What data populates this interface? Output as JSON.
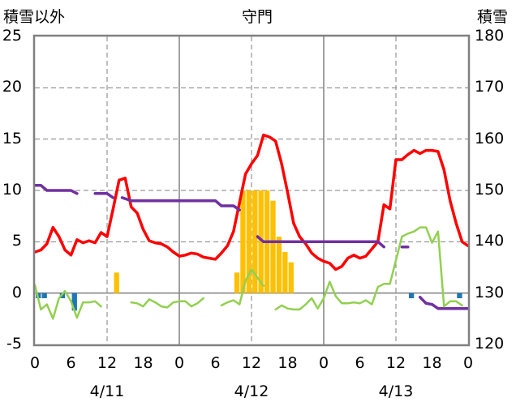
{
  "chart_data": {
    "type": "combo",
    "title": "守門",
    "left_axis_label": "積雪以外",
    "right_axis_label": "積雪",
    "left_ylim": [
      -5,
      25
    ],
    "right_ylim": [
      120,
      180
    ],
    "left_ticks": [
      "25",
      "20",
      "15",
      "10",
      "5",
      "0",
      "-5"
    ],
    "right_ticks": [
      "180",
      "170",
      "160",
      "150",
      "140",
      "130",
      "120"
    ],
    "x_unit": "hours since 4/11 00:00",
    "xlim": [
      0,
      72
    ],
    "x_tick_labels": [
      "0",
      "6",
      "12",
      "18",
      "0",
      "6",
      "12",
      "18",
      "0",
      "6",
      "12",
      "18",
      "0"
    ],
    "date_labels": [
      "4/11",
      "4/12",
      "4/13"
    ],
    "grid": true,
    "series": [
      {
        "axis": "left",
        "kind": "line",
        "color": "#ff0000",
        "points": [
          [
            0,
            4
          ],
          [
            1,
            4.2
          ],
          [
            2,
            4.8
          ],
          [
            3,
            6.4
          ],
          [
            4,
            5.5
          ],
          [
            5,
            4.2
          ],
          [
            6,
            3.7
          ],
          [
            7,
            5.2
          ],
          [
            8,
            4.9
          ],
          [
            9,
            5.1
          ],
          [
            10,
            4.9
          ],
          [
            11,
            5.9
          ],
          [
            12,
            5.5
          ],
          [
            13,
            8.2
          ],
          [
            14,
            11
          ],
          [
            15,
            11.2
          ],
          [
            16,
            8.4
          ],
          [
            17,
            7.8
          ],
          [
            18,
            6.2
          ],
          [
            19,
            5.1
          ],
          [
            20,
            4.9
          ],
          [
            21,
            4.8
          ],
          [
            22,
            4.5
          ],
          [
            23,
            4
          ],
          [
            24,
            3.6
          ],
          [
            25,
            3.7
          ],
          [
            26,
            3.9
          ],
          [
            27,
            3.8
          ],
          [
            28,
            3.5
          ],
          [
            29,
            3.4
          ],
          [
            30,
            3.3
          ],
          [
            31,
            3.9
          ],
          [
            32,
            4.6
          ],
          [
            33,
            6
          ],
          [
            34,
            8.8
          ],
          [
            35,
            11.6
          ],
          [
            36,
            12.6
          ],
          [
            37,
            13.4
          ],
          [
            38,
            15.4
          ],
          [
            39,
            15.2
          ],
          [
            40,
            14.8
          ],
          [
            41,
            12.6
          ],
          [
            42,
            9.8
          ],
          [
            43,
            6.8
          ],
          [
            44,
            5.5
          ],
          [
            45,
            4.8
          ],
          [
            46,
            3.9
          ],
          [
            47,
            3.4
          ],
          [
            48,
            3.1
          ],
          [
            49,
            2.9
          ],
          [
            50,
            2.3
          ],
          [
            51,
            2.6
          ],
          [
            52,
            3.4
          ],
          [
            53,
            3.7
          ],
          [
            54,
            3.4
          ],
          [
            55,
            3.6
          ],
          [
            56,
            4.3
          ],
          [
            57,
            5
          ],
          [
            58,
            8.6
          ],
          [
            59,
            8.2
          ],
          [
            60,
            13
          ],
          [
            61,
            13
          ],
          [
            62,
            13.5
          ],
          [
            63,
            13.9
          ],
          [
            64,
            13.6
          ],
          [
            65,
            13.9
          ],
          [
            66,
            13.9
          ],
          [
            67,
            13.8
          ],
          [
            68,
            12
          ],
          [
            69,
            9
          ],
          [
            70,
            6.8
          ],
          [
            71,
            5
          ],
          [
            72,
            4.6
          ]
        ]
      },
      {
        "axis": "right",
        "kind": "line",
        "color": "#7030a0",
        "segments": [
          [
            [
              0,
              151
            ],
            [
              1,
              151
            ],
            [
              2,
              150
            ],
            [
              3,
              150
            ],
            [
              4,
              150
            ],
            [
              5,
              150
            ],
            [
              6,
              150
            ],
            [
              7,
              149.4
            ]
          ],
          [
            [
              10,
              149.4
            ],
            [
              11,
              149.4
            ],
            [
              12,
              149.4
            ],
            [
              13,
              148.6
            ]
          ],
          [
            [
              14.5,
              148.6
            ],
            [
              16,
              148
            ],
            [
              17,
              148
            ],
            [
              18,
              148
            ],
            [
              19,
              148
            ],
            [
              20,
              148
            ],
            [
              21,
              148
            ],
            [
              22,
              148
            ],
            [
              23,
              148
            ],
            [
              24,
              148
            ],
            [
              25,
              148
            ],
            [
              26,
              148
            ],
            [
              27,
              148
            ],
            [
              28,
              148
            ],
            [
              29,
              148
            ],
            [
              30,
              148
            ],
            [
              31,
              147
            ],
            [
              32,
              147
            ],
            [
              33,
              147
            ],
            [
              34,
              146.2
            ]
          ],
          [
            [
              37,
              141
            ],
            [
              38,
              140
            ],
            [
              39,
              140
            ],
            [
              40,
              140
            ],
            [
              41,
              140
            ],
            [
              42,
              140
            ],
            [
              43,
              140
            ],
            [
              44,
              140
            ],
            [
              45,
              140
            ],
            [
              46,
              140
            ],
            [
              47,
              140
            ],
            [
              48,
              140
            ],
            [
              49,
              140
            ],
            [
              50,
              140
            ],
            [
              51,
              140
            ],
            [
              52,
              140
            ],
            [
              53,
              140
            ],
            [
              54,
              140
            ],
            [
              55,
              140
            ],
            [
              56,
              140
            ],
            [
              57,
              140
            ],
            [
              58,
              139
            ]
          ],
          [
            [
              61,
              139
            ],
            [
              62,
              139
            ]
          ],
          [
            [
              64,
              129.2
            ],
            [
              65,
              128
            ],
            [
              66,
              127.8
            ],
            [
              67,
              127
            ],
            [
              68,
              127
            ],
            [
              69,
              127
            ],
            [
              70,
              127
            ],
            [
              71,
              127
            ],
            [
              72,
              127
            ]
          ]
        ]
      },
      {
        "axis": "left",
        "kind": "line",
        "color": "#92d050",
        "segments": [
          [
            [
              0,
              0.8
            ],
            [
              1,
              -1.6
            ],
            [
              2,
              -1.1
            ],
            [
              3,
              -2.5
            ],
            [
              4,
              -0.5
            ],
            [
              5,
              0.2
            ],
            [
              6,
              -0.8
            ],
            [
              7,
              -2.4
            ],
            [
              8,
              -0.9
            ],
            [
              9,
              -0.9
            ],
            [
              10,
              -0.8
            ],
            [
              11,
              -1.3
            ]
          ],
          [
            [
              16,
              -0.9
            ],
            [
              17,
              -1
            ],
            [
              18,
              -1.3
            ],
            [
              19,
              -0.6
            ],
            [
              20,
              -0.9
            ],
            [
              21,
              -1.3
            ],
            [
              22,
              -1.4
            ],
            [
              23,
              -0.9
            ],
            [
              24,
              -0.8
            ],
            [
              25,
              -0.8
            ],
            [
              26,
              -1.3
            ],
            [
              27,
              -1
            ],
            [
              28,
              -0.5
            ]
          ],
          [
            [
              31,
              -1.2
            ],
            [
              32,
              -0.9
            ],
            [
              33,
              -0.7
            ],
            [
              34,
              -1.1
            ],
            [
              35,
              1.2
            ],
            [
              36,
              2.3
            ],
            [
              37,
              1.5
            ],
            [
              38,
              0.7
            ]
          ],
          [
            [
              40,
              -1.6
            ],
            [
              41,
              -1.2
            ],
            [
              42,
              -1.5
            ],
            [
              43,
              -1.6
            ],
            [
              44,
              -1.6
            ],
            [
              45,
              -1.1
            ],
            [
              46,
              -0.5
            ],
            [
              47,
              -1.5
            ],
            [
              48,
              -0.5
            ],
            [
              49,
              1.1
            ],
            [
              50,
              -0.3
            ],
            [
              51,
              -1
            ],
            [
              52,
              -1
            ],
            [
              53,
              -0.9
            ],
            [
              54,
              -1
            ],
            [
              55,
              -0.7
            ],
            [
              56,
              -1.1
            ],
            [
              57,
              0.6
            ],
            [
              58,
              0.9
            ],
            [
              59,
              0.9
            ],
            [
              60,
              3.2
            ],
            [
              61,
              5.5
            ],
            [
              62,
              5.8
            ],
            [
              63,
              6
            ],
            [
              64,
              6.4
            ],
            [
              65,
              6.4
            ],
            [
              66,
              4.9
            ],
            [
              67,
              6
            ],
            [
              68,
              -1.3
            ],
            [
              69,
              -0.8
            ],
            [
              70,
              -0.8
            ],
            [
              71,
              -1.2
            ]
          ]
        ]
      },
      {
        "axis": "left",
        "kind": "bar",
        "color": "#ffc000",
        "bars": [
          [
            14,
            2
          ],
          [
            34,
            2
          ],
          [
            35,
            10
          ],
          [
            36,
            10
          ],
          [
            37,
            10
          ],
          [
            38,
            10
          ],
          [
            39,
            10
          ],
          [
            40,
            9
          ],
          [
            41,
            5.5
          ],
          [
            42,
            4
          ],
          [
            43,
            3
          ]
        ]
      },
      {
        "axis": "left",
        "kind": "bar",
        "color": "#1f77b4",
        "bars": [
          [
            1,
            -0.5
          ],
          [
            2,
            -0.5
          ],
          [
            5,
            -0.5
          ],
          [
            7,
            -1.7
          ],
          [
            63,
            -0.5
          ],
          [
            71,
            -0.5
          ]
        ]
      }
    ]
  }
}
